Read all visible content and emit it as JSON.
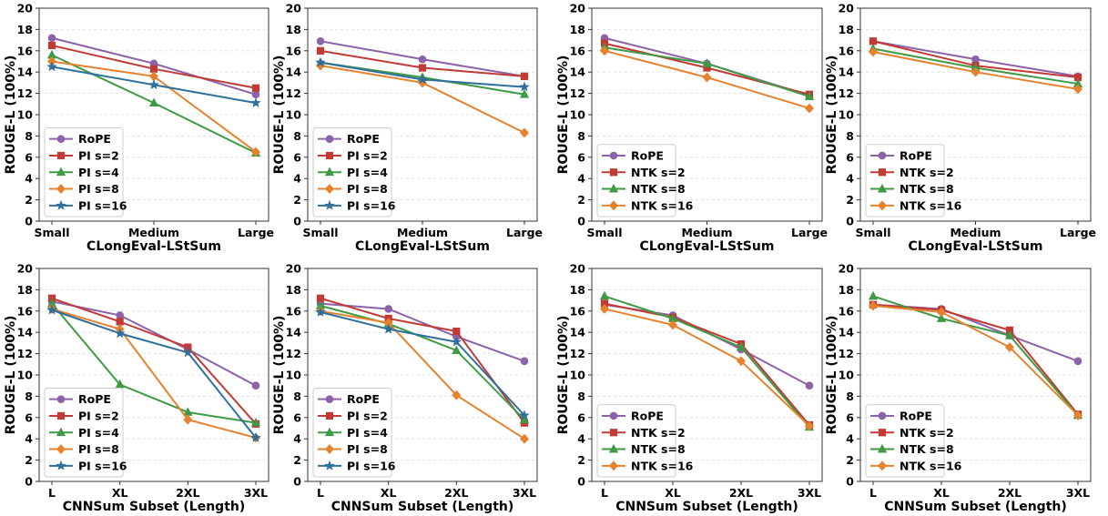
{
  "figure": {
    "colors": {
      "RoPE": "#8c62a8",
      "PI s=2": "#c23a36",
      "NTK s=2": "#c23a36",
      "PI s=4": "#3e9a44",
      "NTK s=8": "#3e9a44",
      "PI s=8": "#e6822e",
      "NTK s=16": "#e6822e",
      "PI s=16": "#2f6f9c"
    },
    "markers": {
      "RoPE": "circle",
      "PI s=2": "square",
      "NTK s=2": "square",
      "PI s=4": "triangle",
      "NTK s=8": "triangle",
      "PI s=8": "diamond",
      "NTK s=16": "diamond",
      "PI s=16": "star"
    }
  },
  "chart_data": [
    {
      "type": "line",
      "xlabel": "CLongEval-LStSum",
      "ylabel": "ROUGE-L (100%)",
      "categories": [
        "Small",
        "Medium",
        "Large"
      ],
      "ylim": [
        0,
        20
      ],
      "yticks": [
        0,
        2,
        4,
        6,
        8,
        10,
        12,
        14,
        16,
        18,
        20
      ],
      "grid": "horizontal",
      "legend": "lower-left",
      "series": [
        {
          "name": "RoPE",
          "values": [
            17.2,
            14.8,
            11.9
          ]
        },
        {
          "name": "PI s=2",
          "values": [
            16.5,
            14.3,
            12.5
          ]
        },
        {
          "name": "PI s=4",
          "values": [
            15.6,
            11.1,
            6.4
          ]
        },
        {
          "name": "PI s=8",
          "values": [
            15.0,
            13.6,
            6.5
          ]
        },
        {
          "name": "PI s=16",
          "values": [
            14.5,
            12.8,
            11.1
          ]
        }
      ]
    },
    {
      "type": "line",
      "xlabel": "CLongEval-LStSum",
      "ylabel": "ROUGE-L (100%)",
      "categories": [
        "Small",
        "Medium",
        "Large"
      ],
      "ylim": [
        0,
        20
      ],
      "yticks": [
        0,
        2,
        4,
        6,
        8,
        10,
        12,
        14,
        16,
        18,
        20
      ],
      "grid": "horizontal",
      "legend": "lower-left",
      "series": [
        {
          "name": "RoPE",
          "values": [
            16.9,
            15.2,
            13.6
          ]
        },
        {
          "name": "PI s=2",
          "values": [
            16.0,
            14.4,
            13.6
          ]
        },
        {
          "name": "PI s=4",
          "values": [
            14.9,
            13.5,
            11.9
          ]
        },
        {
          "name": "PI s=8",
          "values": [
            14.6,
            13.0,
            8.3
          ]
        },
        {
          "name": "PI s=16",
          "values": [
            14.9,
            13.3,
            12.6
          ]
        }
      ]
    },
    {
      "type": "line",
      "xlabel": "CLongEval-LStSum",
      "ylabel": "ROUGE-L (100%)",
      "categories": [
        "Small",
        "Medium",
        "Large"
      ],
      "ylim": [
        0,
        20
      ],
      "yticks": [
        0,
        2,
        4,
        6,
        8,
        10,
        12,
        14,
        16,
        18,
        20
      ],
      "grid": "horizontal",
      "legend": "lower-left",
      "series": [
        {
          "name": "RoPE",
          "values": [
            17.2,
            14.8,
            11.8
          ]
        },
        {
          "name": "NTK s=2",
          "values": [
            16.7,
            14.4,
            11.9
          ]
        },
        {
          "name": "NTK s=8",
          "values": [
            16.3,
            14.8,
            11.7
          ]
        },
        {
          "name": "NTK s=16",
          "values": [
            16.0,
            13.5,
            10.6
          ]
        }
      ]
    },
    {
      "type": "line",
      "xlabel": "CLongEval-LStSum",
      "ylabel": "ROUGE-L (100%)",
      "categories": [
        "Small",
        "Medium",
        "Large"
      ],
      "ylim": [
        0,
        20
      ],
      "yticks": [
        0,
        2,
        4,
        6,
        8,
        10,
        12,
        14,
        16,
        18,
        20
      ],
      "grid": "horizontal",
      "legend": "lower-left",
      "series": [
        {
          "name": "RoPE",
          "values": [
            16.9,
            15.2,
            13.6
          ]
        },
        {
          "name": "NTK s=2",
          "values": [
            16.9,
            14.6,
            13.5
          ]
        },
        {
          "name": "NTK s=8",
          "values": [
            16.2,
            14.4,
            12.9
          ]
        },
        {
          "name": "NTK s=16",
          "values": [
            15.9,
            14.0,
            12.4
          ]
        }
      ]
    },
    {
      "type": "line",
      "xlabel": "CNNSum Subset (Length)",
      "ylabel": "ROUGE-L (100%)",
      "categories": [
        "L",
        "XL",
        "2XL",
        "3XL"
      ],
      "ylim": [
        0,
        20
      ],
      "yticks": [
        0,
        2,
        4,
        6,
        8,
        10,
        12,
        14,
        16,
        18,
        20
      ],
      "grid": "horizontal",
      "legend": "lower-left",
      "series": [
        {
          "name": "RoPE",
          "values": [
            16.9,
            15.6,
            12.4,
            9.0
          ]
        },
        {
          "name": "PI s=2",
          "values": [
            17.2,
            15.0,
            12.6,
            5.4
          ]
        },
        {
          "name": "PI s=4",
          "values": [
            16.7,
            9.1,
            6.5,
            5.5
          ]
        },
        {
          "name": "PI s=8",
          "values": [
            16.2,
            14.3,
            5.8,
            4.1
          ]
        },
        {
          "name": "PI s=16",
          "values": [
            16.1,
            13.9,
            12.1,
            4.1
          ]
        }
      ]
    },
    {
      "type": "line",
      "xlabel": "CNNSum Subset (Length)",
      "ylabel": "ROUGE-L (100%)",
      "categories": [
        "L",
        "XL",
        "2XL",
        "3XL"
      ],
      "ylim": [
        0,
        20
      ],
      "yticks": [
        0,
        2,
        4,
        6,
        8,
        10,
        12,
        14,
        16,
        18,
        20
      ],
      "grid": "horizontal",
      "legend": "lower-left",
      "series": [
        {
          "name": "RoPE",
          "values": [
            16.7,
            16.2,
            13.6,
            11.3
          ]
        },
        {
          "name": "PI s=2",
          "values": [
            17.2,
            15.3,
            14.1,
            5.5
          ]
        },
        {
          "name": "PI s=4",
          "values": [
            16.5,
            14.8,
            12.3,
            5.8
          ]
        },
        {
          "name": "PI s=8",
          "values": [
            16.0,
            14.9,
            8.1,
            4.0
          ]
        },
        {
          "name": "PI s=16",
          "values": [
            15.9,
            14.3,
            13.1,
            6.2
          ]
        }
      ]
    },
    {
      "type": "line",
      "xlabel": "CNNSum Subset (Length)",
      "ylabel": "ROUGE-L (100%)",
      "categories": [
        "L",
        "XL",
        "2XL",
        "3XL"
      ],
      "ylim": [
        0,
        20
      ],
      "yticks": [
        0,
        2,
        4,
        6,
        8,
        10,
        12,
        14,
        16,
        18,
        20
      ],
      "grid": "horizontal",
      "legend": "lower-left",
      "series": [
        {
          "name": "RoPE",
          "values": [
            16.6,
            15.6,
            12.4,
            9.0
          ]
        },
        {
          "name": "NTK s=2",
          "values": [
            16.7,
            15.4,
            12.9,
            5.3
          ]
        },
        {
          "name": "NTK s=8",
          "values": [
            17.4,
            15.3,
            12.6,
            5.1
          ]
        },
        {
          "name": "NTK s=16",
          "values": [
            16.2,
            14.7,
            11.3,
            5.2
          ]
        }
      ]
    },
    {
      "type": "line",
      "xlabel": "CNNSum Subset (Length)",
      "ylabel": "ROUGE-L (100%)",
      "categories": [
        "L",
        "XL",
        "2XL",
        "3XL"
      ],
      "ylim": [
        0,
        20
      ],
      "yticks": [
        0,
        2,
        4,
        6,
        8,
        10,
        12,
        14,
        16,
        18,
        20
      ],
      "grid": "horizontal",
      "legend": "lower-left",
      "series": [
        {
          "name": "RoPE",
          "values": [
            16.6,
            16.2,
            13.7,
            11.3
          ]
        },
        {
          "name": "NTK s=2",
          "values": [
            16.6,
            16.1,
            14.2,
            6.3
          ]
        },
        {
          "name": "NTK s=8",
          "values": [
            17.4,
            15.3,
            13.7,
            6.2
          ]
        },
        {
          "name": "NTK s=16",
          "values": [
            16.5,
            15.9,
            12.6,
            6.2
          ]
        }
      ]
    }
  ]
}
